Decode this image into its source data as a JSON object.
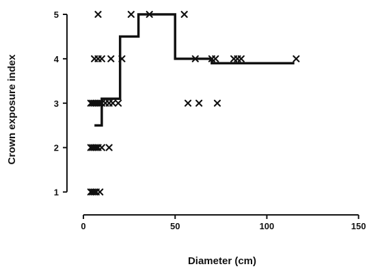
{
  "chart_data": {
    "type": "scatter",
    "title": "",
    "xlabel": "Diameter (cm)",
    "ylabel": "Crown exposure index",
    "xlim": [
      -3,
      152
    ],
    "ylim": [
      0.7,
      5.2
    ],
    "x_ticks": [
      0,
      50,
      100,
      150
    ],
    "x_tick_labels": [
      "0",
      "50",
      "100",
      "150"
    ],
    "y_ticks": [
      1,
      2,
      3,
      4,
      5
    ],
    "y_tick_labels": [
      "1",
      "2",
      "3",
      "4",
      "5"
    ],
    "grid": false,
    "legend": "none",
    "colors": {
      "ink": "#111111",
      "background": "#ffffff"
    },
    "points": [
      {
        "x": 4,
        "y": 1
      },
      {
        "x": 5,
        "y": 1
      },
      {
        "x": 6,
        "y": 1
      },
      {
        "x": 7,
        "y": 1
      },
      {
        "x": 9,
        "y": 1
      },
      {
        "x": 4,
        "y": 2
      },
      {
        "x": 5,
        "y": 2
      },
      {
        "x": 6,
        "y": 2
      },
      {
        "x": 7,
        "y": 2
      },
      {
        "x": 8,
        "y": 2
      },
      {
        "x": 10,
        "y": 2
      },
      {
        "x": 14,
        "y": 2
      },
      {
        "x": 4,
        "y": 3
      },
      {
        "x": 5,
        "y": 3
      },
      {
        "x": 6,
        "y": 3
      },
      {
        "x": 7,
        "y": 3
      },
      {
        "x": 8,
        "y": 3
      },
      {
        "x": 9,
        "y": 3
      },
      {
        "x": 10,
        "y": 3
      },
      {
        "x": 12,
        "y": 3
      },
      {
        "x": 14,
        "y": 3
      },
      {
        "x": 16,
        "y": 3
      },
      {
        "x": 19,
        "y": 3
      },
      {
        "x": 57,
        "y": 3
      },
      {
        "x": 63,
        "y": 3
      },
      {
        "x": 73,
        "y": 3
      },
      {
        "x": 6,
        "y": 4
      },
      {
        "x": 8,
        "y": 4
      },
      {
        "x": 10,
        "y": 4
      },
      {
        "x": 15,
        "y": 4
      },
      {
        "x": 21,
        "y": 4
      },
      {
        "x": 61,
        "y": 4
      },
      {
        "x": 70,
        "y": 4
      },
      {
        "x": 72,
        "y": 4
      },
      {
        "x": 82,
        "y": 4
      },
      {
        "x": 84,
        "y": 4
      },
      {
        "x": 86,
        "y": 4
      },
      {
        "x": 116,
        "y": 4
      },
      {
        "x": 8,
        "y": 5
      },
      {
        "x": 26,
        "y": 5
      },
      {
        "x": 36,
        "y": 5
      },
      {
        "x": 55,
        "y": 5
      }
    ],
    "step_fit": [
      {
        "x": 6,
        "y": 2.5
      },
      {
        "x": 10,
        "y": 2.5
      },
      {
        "x": 10,
        "y": 3.1
      },
      {
        "x": 20,
        "y": 3.1
      },
      {
        "x": 20,
        "y": 4.5
      },
      {
        "x": 30,
        "y": 4.5
      },
      {
        "x": 30,
        "y": 5
      },
      {
        "x": 50,
        "y": 5
      },
      {
        "x": 50,
        "y": 4
      },
      {
        "x": 70,
        "y": 4
      },
      {
        "x": 70,
        "y": 3.9
      },
      {
        "x": 115,
        "y": 3.9
      }
    ]
  }
}
